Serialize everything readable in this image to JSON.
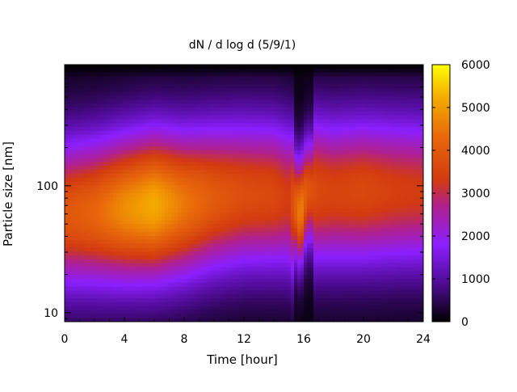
{
  "chart_data": {
    "type": "heatmap",
    "title": "dN / d log d (5/9/1)",
    "xlabel": "Time [hour]",
    "ylabel": "Particle size [nm]",
    "xlim": [
      0,
      24
    ],
    "x_ticks": [
      0,
      4,
      8,
      12,
      16,
      20,
      24
    ],
    "x_tick_labels": [
      "0",
      "4",
      "8",
      "12",
      "16",
      "20",
      "24"
    ],
    "ylim": [
      8.5,
      900
    ],
    "y_scale": "log",
    "y_ticks": [
      10,
      100
    ],
    "y_tick_labels": [
      "10",
      "100"
    ],
    "colorbar": {
      "range": [
        0,
        6000
      ],
      "ticks": [
        0,
        1000,
        2000,
        3000,
        4000,
        5000,
        6000
      ],
      "tick_labels": [
        "0",
        "1000",
        "2000",
        "3000",
        "4000",
        "5000",
        "6000"
      ],
      "colormap": [
        "#000000",
        "#4a0a8c",
        "#8b1fff",
        "#b0208e",
        "#d23a10",
        "#e8680a",
        "#f5b000",
        "#ffff00"
      ]
    },
    "grid": false,
    "approx_profile": {
      "hours": [
        0,
        2,
        4,
        6,
        8,
        10,
        12,
        14,
        15,
        15.8,
        16.2,
        17,
        18,
        20,
        22,
        24
      ],
      "mode_diameter_nm": [
        60,
        62,
        66,
        70,
        72,
        80,
        85,
        85,
        80,
        60,
        90,
        90,
        88,
        90,
        90,
        90
      ],
      "peak_dN_dlogd": [
        3800,
        4100,
        4700,
        5100,
        4400,
        3900,
        3600,
        3500,
        3200,
        4600,
        3800,
        3500,
        3400,
        3500,
        3300,
        3200
      ]
    }
  }
}
